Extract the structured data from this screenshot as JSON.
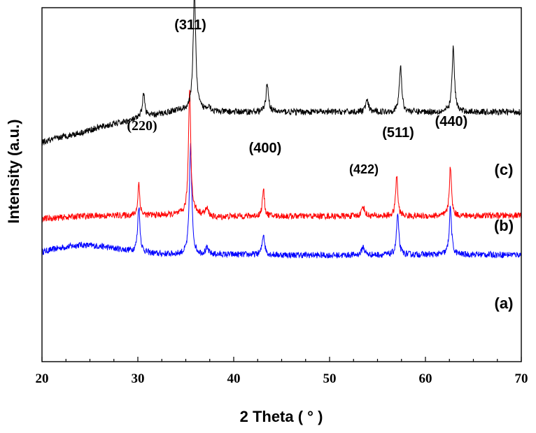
{
  "chart_data": {
    "type": "line",
    "xlabel": "2 Theta ( ° )",
    "ylabel": "Intensity (a.u.)",
    "xlim": [
      20,
      70
    ],
    "x_ticks": [
      "20",
      "30",
      "40",
      "50",
      "60",
      "70"
    ],
    "grid": false,
    "series": [
      {
        "name": "(c)",
        "color": "#0000ff",
        "baseline": [
          [
            20,
            80
          ],
          [
            22,
            86
          ],
          [
            24,
            90
          ],
          [
            26,
            88
          ],
          [
            28,
            84
          ],
          [
            30,
            80
          ],
          [
            32,
            77
          ],
          [
            36,
            76
          ],
          [
            40,
            76
          ],
          [
            50,
            75
          ],
          [
            60,
            76
          ],
          [
            70,
            76
          ]
        ],
        "peaks": [
          [
            30.1,
            66,
            0.14
          ],
          [
            35.5,
            156,
            0.15
          ],
          [
            37.2,
            8,
            0.2
          ],
          [
            43.1,
            30,
            0.15
          ],
          [
            53.5,
            12,
            0.18
          ],
          [
            57.1,
            58,
            0.14
          ],
          [
            62.6,
            68,
            0.14
          ]
        ]
      },
      {
        "name": "(b)",
        "color": "#ff0000",
        "baseline": [
          [
            20,
            40
          ],
          [
            24,
            44
          ],
          [
            28,
            45
          ],
          [
            30,
            45
          ],
          [
            34,
            46
          ],
          [
            36,
            48
          ],
          [
            38,
            42
          ],
          [
            40,
            44
          ],
          [
            50,
            44
          ],
          [
            60,
            44
          ],
          [
            70,
            45
          ]
        ],
        "peaks": [
          [
            30.1,
            46,
            0.12
          ],
          [
            35.4,
            180,
            0.14
          ],
          [
            37.2,
            10,
            0.2
          ],
          [
            43.1,
            38,
            0.13
          ],
          [
            53.5,
            14,
            0.18
          ],
          [
            57.0,
            58,
            0.13
          ],
          [
            62.6,
            72,
            0.13
          ]
        ]
      },
      {
        "name": "(a)",
        "color": "#000000",
        "baseline": [
          [
            20,
            6
          ],
          [
            22,
            14
          ],
          [
            24,
            20
          ],
          [
            26,
            28
          ],
          [
            28,
            34
          ],
          [
            30,
            40
          ],
          [
            32,
            46
          ],
          [
            34,
            52
          ],
          [
            36,
            53
          ],
          [
            38,
            50
          ],
          [
            40,
            50
          ],
          [
            50,
            50
          ],
          [
            60,
            50
          ],
          [
            70,
            50
          ]
        ],
        "peaks": [
          [
            30.6,
            34,
            0.16
          ],
          [
            35.9,
            170,
            0.16
          ],
          [
            37.4,
            8,
            0.2
          ],
          [
            43.5,
            42,
            0.15
          ],
          [
            53.9,
            16,
            0.18
          ],
          [
            57.4,
            66,
            0.15
          ],
          [
            62.9,
            92,
            0.15
          ]
        ]
      }
    ],
    "peak_labels": [
      "(220)",
      "(311)",
      "(400)",
      "(422)",
      "(511)",
      "(440)"
    ],
    "series_labels": [
      "(c)",
      "(b)",
      "(a)"
    ]
  }
}
